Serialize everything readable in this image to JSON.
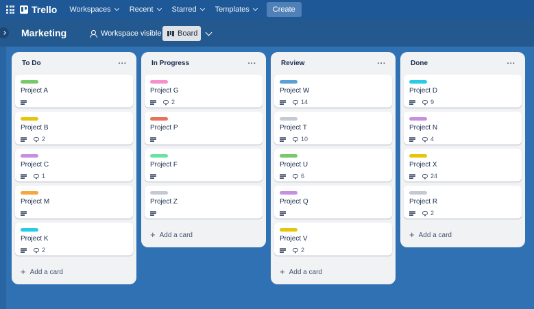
{
  "nav": {
    "brand": "Trello",
    "menu": [
      {
        "label": "Workspaces"
      },
      {
        "label": "Recent"
      },
      {
        "label": "Starred"
      },
      {
        "label": "Templates"
      }
    ],
    "create_label": "Create"
  },
  "board": {
    "title": "Marketing",
    "visibility_label": "Workspace visible",
    "view_label": "Board"
  },
  "lists": [
    {
      "title": "To Do",
      "add_label": "Add a card",
      "cards": [
        {
          "title": "Project A",
          "label_color": "#7bc86c",
          "comments": null
        },
        {
          "title": "Project B",
          "label_color": "#e6c60d",
          "comments": "2"
        },
        {
          "title": "Project C",
          "label_color": "#c88fe0",
          "comments": "1"
        },
        {
          "title": "Project M",
          "label_color": "#f5a742",
          "comments": null
        },
        {
          "title": "Project K",
          "label_color": "#29cce5",
          "comments": "2"
        }
      ]
    },
    {
      "title": "In Progress",
      "add_label": "Add a card",
      "cards": [
        {
          "title": "Project G",
          "label_color": "#f78fcc",
          "comments": "2"
        },
        {
          "title": "Project P",
          "label_color": "#e8735b",
          "comments": null
        },
        {
          "title": "Project F",
          "label_color": "#6be3a0",
          "comments": null
        },
        {
          "title": "Project Z",
          "label_color": "#c5c9d1",
          "comments": null
        }
      ]
    },
    {
      "title": "Review",
      "add_label": "Add a card",
      "cards": [
        {
          "title": "Project W",
          "label_color": "#5b9fd6",
          "comments": "14"
        },
        {
          "title": "Project T",
          "label_color": "#c5c9d1",
          "comments": "10"
        },
        {
          "title": "Project U",
          "label_color": "#7bc86c",
          "comments": "6"
        },
        {
          "title": "Project Q",
          "label_color": "#c88fe0",
          "comments": null
        },
        {
          "title": "Project V",
          "label_color": "#e6c60d",
          "comments": "2"
        }
      ]
    },
    {
      "title": "Done",
      "add_label": "Add a card",
      "cards": [
        {
          "title": "Project D",
          "label_color": "#29cce5",
          "comments": "9"
        },
        {
          "title": "Project N",
          "label_color": "#c88fe0",
          "comments": "4"
        },
        {
          "title": "Project X",
          "label_color": "#e6c60d",
          "comments": "24"
        },
        {
          "title": "Project R",
          "label_color": "#c5c9d1",
          "comments": "2"
        }
      ]
    }
  ]
}
